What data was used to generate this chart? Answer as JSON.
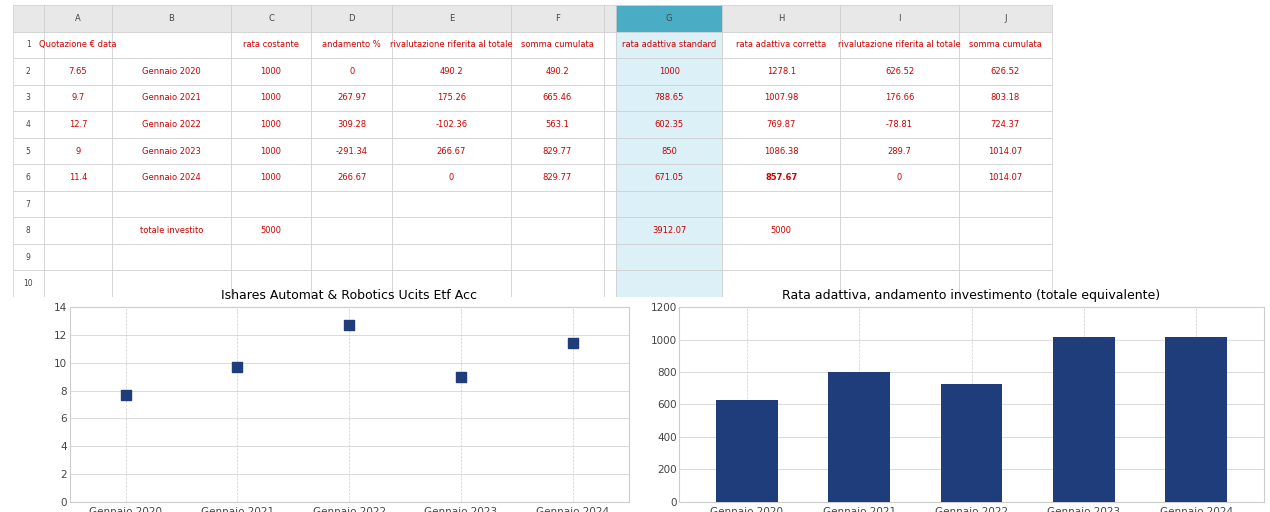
{
  "table": {
    "col_letters": [
      "A",
      "B",
      "C",
      "D",
      "E",
      "F",
      "",
      "G",
      "H",
      "I",
      "J"
    ],
    "header_row": [
      "Quotazione € data",
      "",
      "rata costante",
      "andamento %",
      "rivalutazione riferita al totale",
      "somma cumulata",
      "",
      "rata adattiva standard",
      "rata adattiva corretta",
      "rivalutazione riferita al totale",
      "somma cumulata"
    ],
    "data_rows": [
      [
        "7.65",
        "Gennaio 2020",
        "1000",
        "0",
        "490.2",
        "490.2",
        "",
        "1000",
        "1278.1",
        "626.52",
        "626.52"
      ],
      [
        "9.7",
        "Gennaio 2021",
        "1000",
        "267.97",
        "175.26",
        "665.46",
        "",
        "788.65",
        "1007.98",
        "176.66",
        "803.18"
      ],
      [
        "12.7",
        "Gennaio 2022",
        "1000",
        "309.28",
        "-102.36",
        "563.1",
        "",
        "602.35",
        "769.87",
        "-78.81",
        "724.37"
      ],
      [
        "9",
        "Gennaio 2023",
        "1000",
        "-291.34",
        "266.67",
        "829.77",
        "",
        "850",
        "1086.38",
        "289.7",
        "1014.07"
      ],
      [
        "11.4",
        "Gennaio 2024",
        "1000",
        "266.67",
        "0",
        "829.77",
        "",
        "671.05",
        "857.67",
        "0",
        "1014.07"
      ]
    ],
    "extra_rows": [
      [
        "",
        "",
        "",
        "",
        "",
        "",
        "",
        "",
        "",
        "",
        ""
      ],
      [
        "",
        "totale investito",
        "5000",
        "",
        "",
        "",
        "",
        "3912.07",
        "5000",
        "",
        ""
      ],
      [
        "",
        "",
        "",
        "",
        "",
        "",
        "",
        "",
        "",
        "",
        ""
      ],
      [
        "",
        "",
        "",
        "",
        "",
        "",
        "",
        "",
        "",
        "",
        ""
      ]
    ]
  },
  "scatter": {
    "title": "Ishares Automat & Robotics Ucits Etf Acc",
    "x_labels": [
      "Gennaio 2020",
      "Gennaio 2021",
      "Gennaio 2022",
      "Gennaio 2023",
      "Gennaio 2024"
    ],
    "y_values": [
      7.65,
      9.7,
      12.7,
      9,
      11.4
    ],
    "y_min": 0,
    "y_max": 14,
    "y_ticks": [
      0,
      2,
      4,
      6,
      8,
      10,
      12,
      14
    ],
    "marker_color": "#1F3D7A",
    "marker_size": 50
  },
  "bar": {
    "title": "Rata adattiva, andamento investimento (totale equivalente)",
    "x_labels": [
      "Gennaio 2020",
      "Gennaio 2021",
      "Gennaio 2022",
      "Gennaio 2023",
      "Gennaio 2024"
    ],
    "y_values": [
      626.52,
      803.18,
      724.37,
      1014.07,
      1014.07
    ],
    "y_min": 0,
    "y_max": 1200,
    "y_ticks": [
      0,
      200,
      400,
      600,
      800,
      1000,
      1200
    ],
    "bar_color": "#1F3D7A"
  },
  "grid_color": "#CCCCCC",
  "bg_color": "#FFFFFF",
  "highlight_col_color": "#4BACC6",
  "text_color": "#CC0000",
  "header_letter_color": "#444444",
  "title_font_color": "#000000",
  "col_widths": [
    0.055,
    0.095,
    0.065,
    0.065,
    0.095,
    0.075,
    0.01,
    0.085,
    0.095,
    0.095,
    0.075
  ],
  "chart_dashed_line_color": "#BBBBBB"
}
